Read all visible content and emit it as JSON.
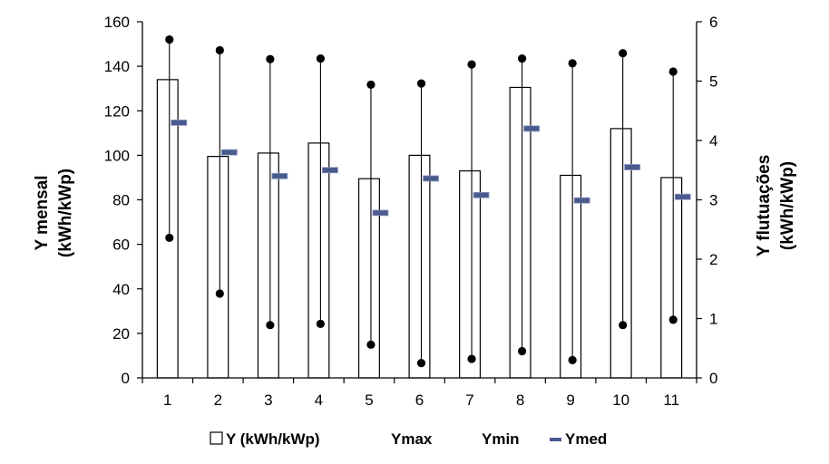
{
  "chart_data": {
    "type": "bar",
    "categories": [
      "1",
      "2",
      "3",
      "4",
      "5",
      "6",
      "7",
      "8",
      "9",
      "10",
      "11"
    ],
    "y_left": {
      "title_line1": "Y mensal",
      "title_line2": "(kWh/kWp)",
      "ylim": [
        0,
        160
      ],
      "ticks": [
        0,
        20,
        40,
        60,
        80,
        100,
        120,
        140,
        160
      ]
    },
    "y_right": {
      "title_line1": "Y flutuações",
      "title_line2": "(kWh/kWp)",
      "ylim": [
        0,
        6
      ],
      "ticks": [
        0,
        1,
        2,
        3,
        4,
        5,
        6
      ]
    },
    "series": [
      {
        "name": "Y (kWh/kWp)",
        "axis": "left",
        "kind": "bar",
        "values": [
          134,
          99.5,
          101,
          105.5,
          89.5,
          100,
          93,
          130.5,
          91,
          112,
          90
        ]
      },
      {
        "name": "Ymax",
        "axis": "right",
        "kind": "point",
        "values": [
          5.7,
          5.52,
          5.37,
          5.38,
          4.94,
          4.96,
          5.28,
          5.38,
          5.3,
          5.47,
          5.16
        ]
      },
      {
        "name": "Ymin",
        "axis": "right",
        "kind": "point",
        "values": [
          2.36,
          1.42,
          0.89,
          0.91,
          0.56,
          0.25,
          0.32,
          0.45,
          0.3,
          0.89,
          0.98
        ]
      },
      {
        "name": "Ymed",
        "axis": "right",
        "kind": "dash",
        "values": [
          4.3,
          3.8,
          3.4,
          3.5,
          2.78,
          3.36,
          3.08,
          4.2,
          2.99,
          3.55,
          3.05
        ]
      }
    ],
    "legend": {
      "position": "bottom",
      "items": [
        "Y (kWh/kWp)",
        "Ymax",
        "Ymin",
        "Ymed"
      ]
    },
    "grid": false,
    "colors": {
      "bar_fill": "#ffffff",
      "bar_stroke": "#000000",
      "point": "#000000",
      "ymed": "#4a5a8c"
    }
  }
}
